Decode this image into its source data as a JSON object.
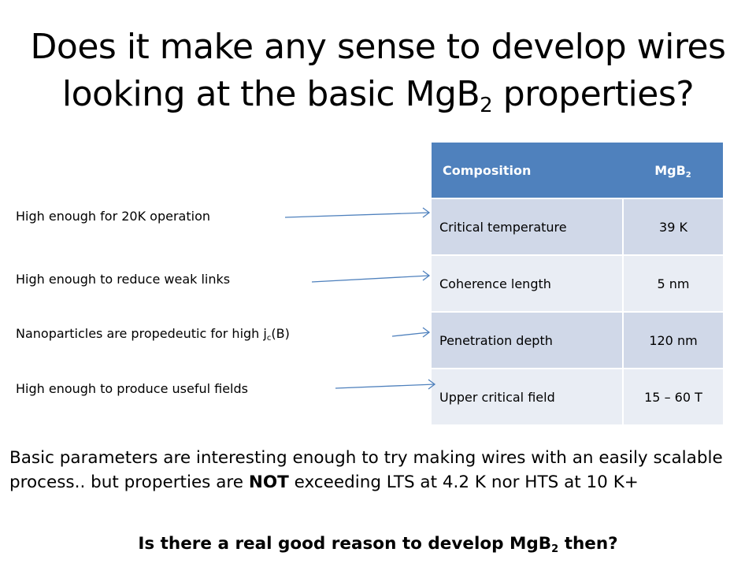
{
  "slide": {
    "title_line1": "Does it make any sense to develop wires",
    "title_line2_pre": "looking at the basic MgB",
    "title_line2_sub": "2",
    "title_line2_post": " properties?"
  },
  "notes": {
    "temp": "High enough for 20K operation",
    "weak": "High enough to reduce weak links",
    "nano_pre": "Nanoparticles are propedeutic for high j",
    "nano_sub": "c",
    "nano_post": "(B)",
    "field": "High enough to produce useful fields"
  },
  "table": {
    "header_col1": "Composition",
    "header_col2_pre": "MgB",
    "header_col2_sub": "2",
    "rows": [
      {
        "property": "Critical temperature",
        "value": "39 K"
      },
      {
        "property": "Coherence length",
        "value": "5 nm"
      },
      {
        "property": "Penetration depth",
        "value": "120 nm"
      },
      {
        "property": "Upper critical field",
        "value": "15 – 60 T"
      }
    ]
  },
  "body": {
    "para_pre": "Basic parameters are interesting enough to try making wires with an easily scalable process.. but properties are ",
    "para_bold": "NOT",
    "para_post": " exceeding LTS at 4.2 K nor HTS at 10 K+",
    "question_pre": "Is there a real good reason to develop MgB",
    "question_sub": "2",
    "question_post": " then?"
  },
  "colors": {
    "header_bg": "#4f81bd",
    "row_dark": "#d0d8e8",
    "row_light": "#e9edf4",
    "arrow": "#4f81bd"
  }
}
